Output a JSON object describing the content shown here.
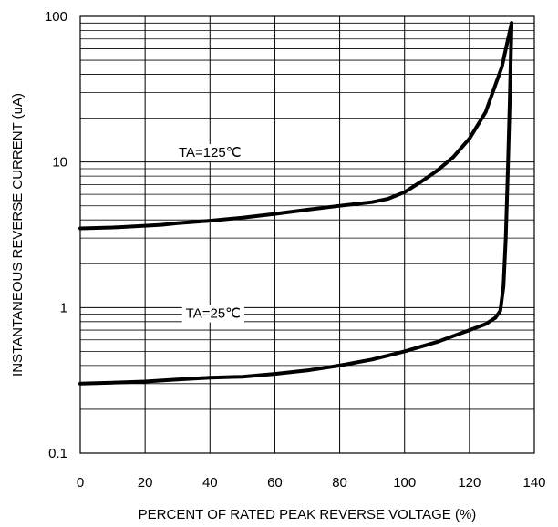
{
  "chart_data": {
    "type": "line",
    "title": "",
    "xlabel": "PERCENT OF RATED PEAK REVERSE VOLTAGE (%)",
    "ylabel": "INSTANTANEOUS REVERSE CURRENT (uA)",
    "xlim": [
      0,
      140
    ],
    "ylim": [
      0.1,
      100
    ],
    "yscale": "log",
    "grid": true,
    "x_ticks": [
      0,
      20,
      40,
      60,
      80,
      100,
      120,
      140
    ],
    "y_ticks": [
      0.1,
      1,
      10,
      100
    ],
    "x_tick_labels": [
      "0",
      "20",
      "40",
      "60",
      "80",
      "100",
      "120",
      "140"
    ],
    "y_tick_labels": [
      "0.1",
      "1",
      "10",
      "100"
    ],
    "series": [
      {
        "name": "TA=125℃",
        "label_at": [
          40,
          11.5
        ],
        "x": [
          0,
          10,
          20,
          25,
          30,
          40,
          50,
          60,
          70,
          80,
          90,
          95,
          100,
          105,
          110,
          115,
          120,
          125,
          130,
          133
        ],
        "y": [
          3.5,
          3.55,
          3.65,
          3.7,
          3.8,
          3.95,
          4.15,
          4.4,
          4.7,
          5.0,
          5.3,
          5.6,
          6.2,
          7.3,
          8.7,
          10.8,
          14.5,
          22,
          45,
          90
        ]
      },
      {
        "name": "TA=25℃",
        "label_at": [
          41,
          0.9
        ],
        "x": [
          0,
          10,
          20,
          30,
          40,
          50,
          60,
          70,
          80,
          90,
          100,
          110,
          120,
          125,
          128,
          129.5,
          130.5,
          131.2,
          131.8,
          132.4,
          133
        ],
        "y": [
          0.3,
          0.305,
          0.31,
          0.32,
          0.33,
          0.335,
          0.35,
          0.37,
          0.4,
          0.44,
          0.5,
          0.58,
          0.7,
          0.77,
          0.85,
          0.95,
          1.4,
          3,
          8,
          25,
          90
        ]
      }
    ]
  }
}
